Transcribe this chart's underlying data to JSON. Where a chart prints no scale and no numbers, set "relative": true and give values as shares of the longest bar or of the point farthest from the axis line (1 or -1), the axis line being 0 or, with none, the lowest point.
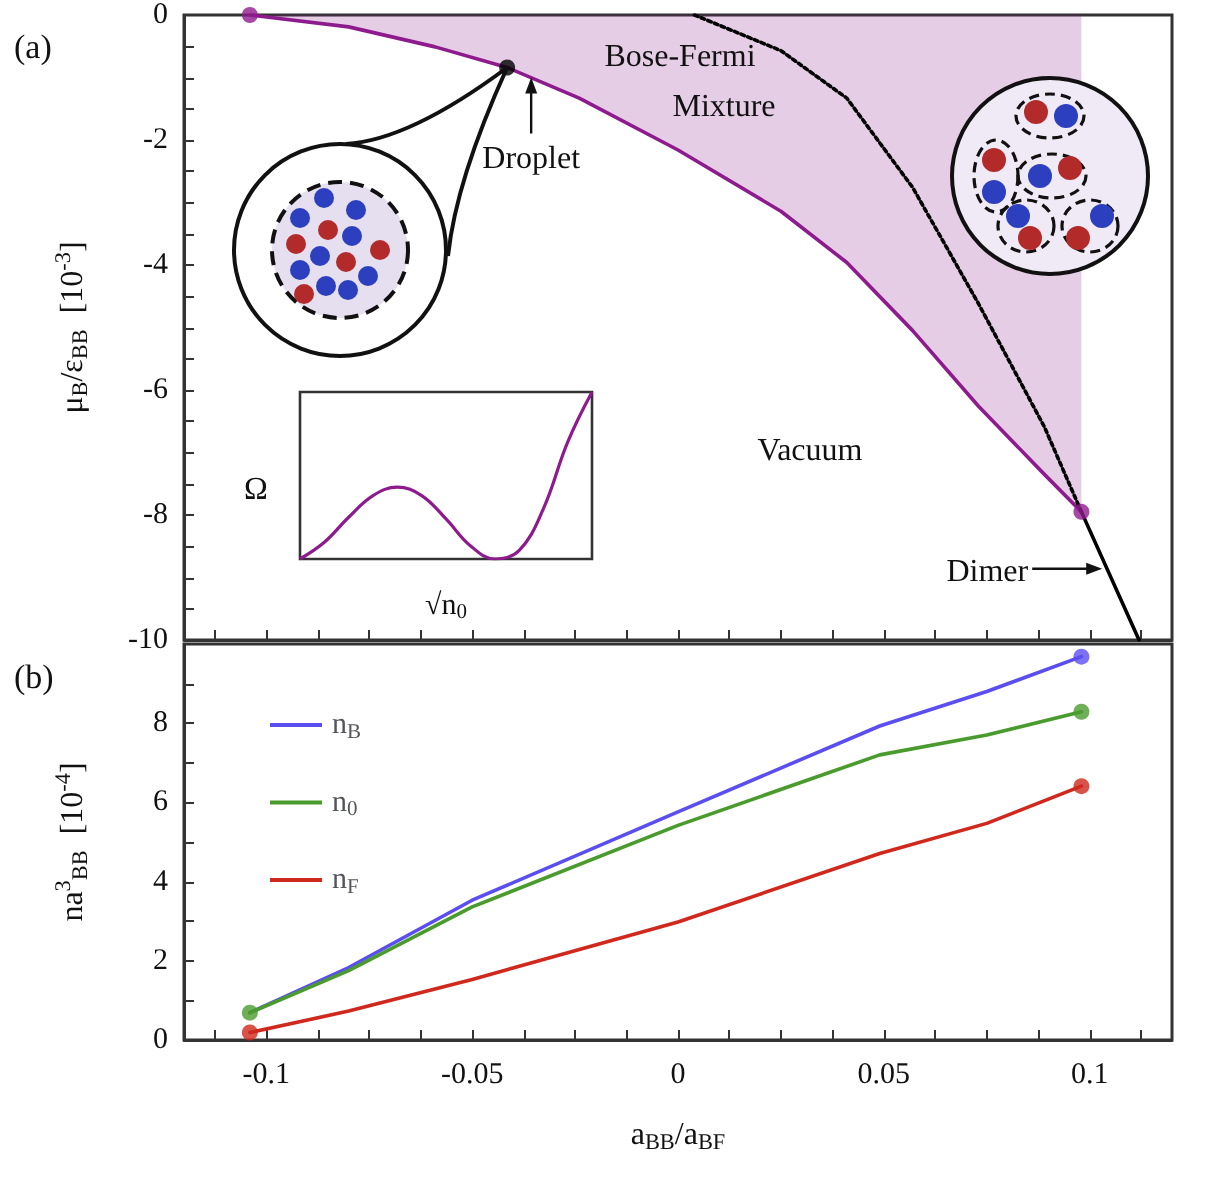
{
  "chart_data": [
    {
      "type": "line",
      "title": "(a)",
      "ylabel": "μ$_{B}$/ε$_{BB}$  [10$^{-3}$]",
      "xlim": [
        -0.12,
        0.12
      ],
      "ylim": [
        -10,
        0
      ],
      "tick_labels": "y",
      "xticks": [
        {
          "value": -0.1125,
          "label": null
        },
        {
          "value": -0.1,
          "label": null
        },
        {
          "value": -0.0875,
          "label": null
        },
        {
          "value": -0.075,
          "label": null
        },
        {
          "value": -0.0625,
          "label": null
        },
        {
          "value": -0.05,
          "label": null
        },
        {
          "value": -0.0375,
          "label": null
        },
        {
          "value": -0.025,
          "label": null
        },
        {
          "value": -0.0125,
          "label": null
        },
        {
          "value": 0,
          "label": null
        },
        {
          "value": 0.0125,
          "label": null
        },
        {
          "value": 0.025,
          "label": null
        },
        {
          "value": 0.0375,
          "label": null
        },
        {
          "value": 0.05,
          "label": null
        },
        {
          "value": 0.0625,
          "label": null
        },
        {
          "value": 0.075,
          "label": null
        },
        {
          "value": 0.0875,
          "label": null
        },
        {
          "value": 0.1,
          "label": null
        },
        {
          "value": 0.1125,
          "label": null
        }
      ],
      "yticks": [
        -10,
        {
          "value": -9.5,
          "label": null
        },
        {
          "value": -9,
          "label": null
        },
        {
          "value": -8.5,
          "label": null
        },
        -8,
        {
          "value": -7.5,
          "label": null
        },
        {
          "value": -7,
          "label": null
        },
        {
          "value": -6.5,
          "label": null
        },
        -6,
        {
          "value": -5.5,
          "label": null
        },
        {
          "value": -5,
          "label": null
        },
        {
          "value": -4.5,
          "label": null
        },
        -4,
        {
          "value": -3.5,
          "label": null
        },
        {
          "value": -3,
          "label": null
        },
        {
          "value": -2.5,
          "label": null
        },
        -2,
        {
          "value": -1.5,
          "label": null
        },
        {
          "value": -1,
          "label": null
        },
        {
          "value": -0.5,
          "label": null
        },
        0
      ],
      "annotations": [
        "Bose-Fermi Mixture",
        {
          "text": "Droplet",
          "x": -0.0415,
          "y": -0.84
        },
        "Vacuum",
        {
          "text": "Dimer",
          "x": 0.1045,
          "y": -8.86
        }
      ],
      "series": [
        {
          "type": "line",
          "color": "#8e1b8e",
          "x": [
            -0.104,
            -0.08,
            -0.059,
            -0.0415,
            -0.024,
            0,
            0.025,
            0.041,
            0.057,
            0.073,
            0.089,
            0.098
          ],
          "values": [
            0,
            -0.19,
            -0.51,
            -0.84,
            -1.33,
            -2.16,
            -3.14,
            -3.96,
            -5.05,
            -6.26,
            -7.35,
            -7.95
          ],
          "lower": [
            0,
            -0.19,
            -0.51,
            -0.84,
            -1.33,
            -2.16,
            -3.14,
            -3.96,
            -5.05,
            -6.26,
            -7.35,
            -7.95
          ],
          "upper": [
            0,
            0,
            0,
            0,
            0,
            0,
            0,
            0,
            0,
            0,
            0,
            0
          ]
        },
        {
          "type": "line",
          "color": "#000000",
          "marker": "none",
          "line_style": "dotted",
          "x": [
            0.004,
            0.025,
            0.041,
            0.057,
            0.073,
            0.089,
            0.098
          ],
          "values": [
            0,
            -0.57,
            -1.33,
            -2.76,
            -4.62,
            -6.59,
            -7.95
          ]
        },
        {
          "type": "line",
          "color": "#000000",
          "marker": "none",
          "x": [
            0.098,
            0.112
          ],
          "values": [
            -7.95,
            -10
          ]
        },
        {
          "type": "scatter",
          "color": "#8e1b8e",
          "marker": "circle",
          "x": [
            -0.104,
            0.098
          ],
          "values": [
            0,
            -7.95
          ]
        },
        {
          "type": "scatter",
          "color": "#000000",
          "marker": "circle",
          "x": [
            -0.0415
          ],
          "values": [
            -0.84
          ]
        }
      ]
    },
    {
      "type": "line",
      "title": "(b)",
      "xlabel": "a$_{BB}$/a$_{BF}$",
      "ylabel": "na$^{3}$$_{BB}$  [10$^{-4}$]",
      "xlim": [
        -0.12,
        0.12
      ],
      "ylim": [
        0,
        10
      ],
      "legend": "top left",
      "xticks": [
        {
          "value": -0.1125,
          "label": null
        },
        {
          "value": -0.1,
          "label": "-0.1"
        },
        {
          "value": -0.0875,
          "label": null
        },
        {
          "value": -0.075,
          "label": null
        },
        {
          "value": -0.0625,
          "label": null
        },
        {
          "value": -0.05,
          "label": "-0.05"
        },
        {
          "value": -0.0375,
          "label": null
        },
        {
          "value": -0.025,
          "label": null
        },
        {
          "value": -0.0125,
          "label": null
        },
        {
          "value": 0,
          "label": "0"
        },
        {
          "value": 0.0125,
          "label": null
        },
        {
          "value": 0.025,
          "label": null
        },
        {
          "value": 0.0375,
          "label": null
        },
        {
          "value": 0.05,
          "label": "0.05"
        },
        {
          "value": 0.0625,
          "label": null
        },
        {
          "value": 0.075,
          "label": null
        },
        {
          "value": 0.0875,
          "label": null
        },
        {
          "value": 0.1,
          "label": "0.1"
        },
        {
          "value": 0.1125,
          "label": null
        }
      ],
      "yticks": [
        0,
        {
          "value": 1,
          "label": null
        },
        2,
        {
          "value": 3,
          "label": null
        },
        4,
        {
          "value": 5,
          "label": null
        },
        6,
        {
          "value": 7,
          "label": null
        },
        8,
        {
          "value": 9,
          "label": null
        }
      ],
      "x": [
        -0.104,
        -0.08,
        -0.05,
        0,
        0.049,
        0.075,
        0.098
      ],
      "series": [
        {
          "name": "n$_{B}$",
          "color": "#5b4ef0",
          "values": [
            0.69,
            1.83,
            3.53,
            5.76,
            7.93,
            8.8,
            9.68
          ]
        },
        {
          "name": "n$_{0}$",
          "color": "#4a9b2e",
          "values": [
            0.69,
            1.75,
            3.36,
            5.42,
            7.2,
            7.7,
            8.29
          ]
        },
        {
          "name": "n$_{F}$",
          "color": "#d0281c",
          "values": [
            0.19,
            0.73,
            1.53,
            2.98,
            4.71,
            5.47,
            6.41
          ]
        },
        {
          "type": "scatter",
          "marker": "circle",
          "color": "#5b4ef0",
          "x": [
            0.098
          ],
          "values": [
            9.68
          ]
        },
        {
          "type": "scatter",
          "marker": "circle",
          "color": "#4a9b2e",
          "x": [
            -0.104,
            0.098
          ],
          "values": [
            0.69,
            8.29
          ]
        },
        {
          "type": "scatter",
          "marker": "circle",
          "color": "#d0281c",
          "x": [
            -0.104,
            0.098
          ],
          "values": [
            0.19,
            6.41
          ]
        }
      ]
    },
    {
      "type": "line",
      "relative": true,
      "xlabel": "√n$_{0}$",
      "ylabel": "Ω",
      "tick_labels": false,
      "color": "#8e1b8e",
      "categories": [
        null,
        null,
        null,
        null,
        null,
        null,
        null,
        null,
        null,
        null,
        null,
        null,
        null
      ],
      "values": [
        0,
        0.1,
        0.25,
        0.38,
        0.43,
        0.38,
        0.24,
        0.08,
        0,
        0.05,
        0.3,
        0.7,
        1
      ]
    }
  ]
}
